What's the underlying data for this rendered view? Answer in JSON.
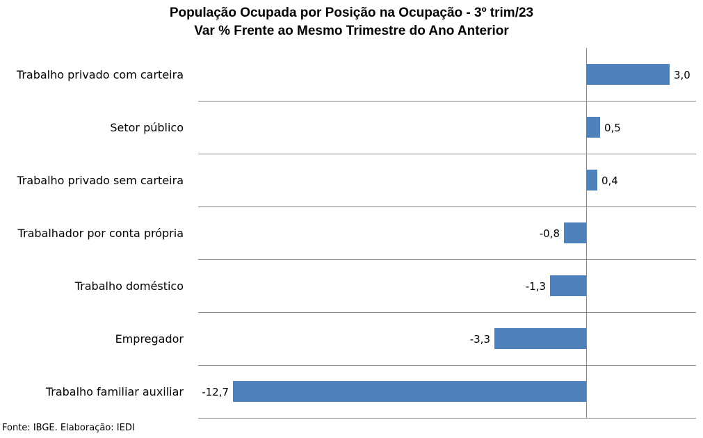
{
  "chart_data": {
    "type": "bar",
    "orientation": "horizontal",
    "title": "População Ocupada por Posição na Ocupação  - 3º trim/23",
    "subtitle": "Var % Frente ao Mesmo Trimestre do Ano Anterior",
    "categories": [
      "Trabalho privado com carteira",
      "Setor público",
      "Trabalho privado sem carteira",
      "Trabalhador por conta própria",
      "Trabalho doméstico",
      "Empregador",
      "Trabalho familiar auxiliar"
    ],
    "values": [
      3.0,
      0.5,
      0.4,
      -0.8,
      -1.3,
      -3.3,
      -12.7
    ],
    "value_labels": [
      "3,0",
      "0,5",
      "0,4",
      "-0,8",
      "-1,3",
      "-3,3",
      "-12,7"
    ],
    "xlim": [
      -14,
      4
    ],
    "grid": "horizontal",
    "bar_color": "#4f81bd",
    "grid_color": "#878787"
  },
  "source": "Fonte: IBGE. Elaboração: IEDI"
}
